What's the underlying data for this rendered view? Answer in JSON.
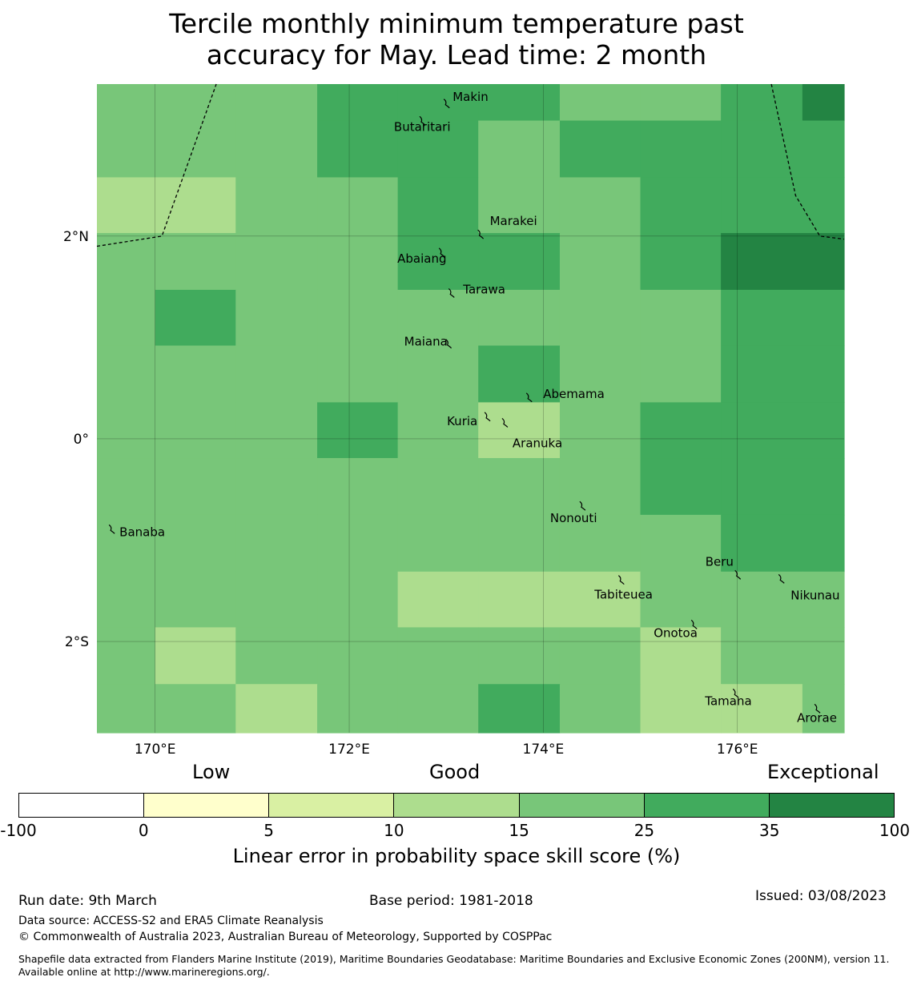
{
  "title_line1": "Tercile monthly minimum temperature past",
  "title_line2": "accuracy for May. Lead time: 2 month",
  "map": {
    "lon_range": [
      169.4,
      177.1
    ],
    "lat_range": [
      -2.9,
      3.5
    ],
    "lat_labels": [
      {
        "value": 2,
        "label": "2°N"
      },
      {
        "value": 0,
        "label": "0°"
      },
      {
        "value": -2,
        "label": "2°S"
      }
    ],
    "lon_labels": [
      {
        "value": 170,
        "label": "170°E"
      },
      {
        "value": 172,
        "label": "172°E"
      },
      {
        "value": 174,
        "label": "174°E"
      },
      {
        "value": 176,
        "label": "176°E"
      }
    ],
    "grid_lons": [
      169.4,
      170.0,
      170.83,
      171.67,
      172.5,
      173.33,
      174.17,
      175.0,
      175.83,
      176.67,
      177.1
    ],
    "grid_lats": [
      3.5,
      3.14,
      2.58,
      2.03,
      1.47,
      0.92,
      0.36,
      -0.19,
      -0.75,
      -1.31,
      -1.86,
      -2.42,
      -2.9
    ],
    "skill_class_grid": [
      [
        4,
        4,
        4,
        5,
        5,
        5,
        4,
        4,
        5,
        6
      ],
      [
        4,
        4,
        4,
        5,
        5,
        4,
        5,
        5,
        5,
        5
      ],
      [
        3,
        3,
        4,
        4,
        5,
        4,
        4,
        5,
        5,
        5
      ],
      [
        4,
        4,
        4,
        4,
        5,
        5,
        4,
        5,
        6,
        6
      ],
      [
        4,
        5,
        4,
        4,
        4,
        4,
        4,
        4,
        5,
        5
      ],
      [
        4,
        4,
        4,
        4,
        4,
        5,
        4,
        4,
        5,
        5
      ],
      [
        4,
        4,
        4,
        5,
        4,
        3,
        4,
        5,
        5,
        5
      ],
      [
        4,
        4,
        4,
        4,
        4,
        4,
        4,
        5,
        5,
        5
      ],
      [
        4,
        4,
        4,
        4,
        4,
        4,
        4,
        4,
        5,
        5
      ],
      [
        4,
        4,
        4,
        4,
        3,
        3,
        3,
        4,
        4,
        4
      ],
      [
        4,
        3,
        4,
        4,
        4,
        4,
        4,
        3,
        4,
        4
      ],
      [
        4,
        4,
        3,
        4,
        4,
        5,
        4,
        3,
        3,
        4
      ]
    ],
    "islands": [
      {
        "name": "Makin",
        "lon": 173.0,
        "lat": 3.32
      },
      {
        "name": "Butaritari",
        "lon": 172.75,
        "lat": 3.15
      },
      {
        "name": "Marakei",
        "lon": 173.35,
        "lat": 2.03
      },
      {
        "name": "Abaiang",
        "lon": 172.95,
        "lat": 1.85
      },
      {
        "name": "Tarawa",
        "lon": 173.05,
        "lat": 1.45
      },
      {
        "name": "Maiana",
        "lon": 173.02,
        "lat": 0.95
      },
      {
        "name": "Abemama",
        "lon": 173.85,
        "lat": 0.42
      },
      {
        "name": "Kuria",
        "lon": 173.42,
        "lat": 0.23
      },
      {
        "name": "Aranuka",
        "lon": 173.6,
        "lat": 0.17
      },
      {
        "name": "Nonouti",
        "lon": 174.4,
        "lat": -0.65
      },
      {
        "name": "Banaba",
        "lon": 169.55,
        "lat": -0.88
      },
      {
        "name": "Tabiteuea",
        "lon": 174.8,
        "lat": -1.38
      },
      {
        "name": "Beru",
        "lon": 176.0,
        "lat": -1.33
      },
      {
        "name": "Nikunau",
        "lon": 176.45,
        "lat": -1.37
      },
      {
        "name": "Onotoa",
        "lon": 175.55,
        "lat": -1.82
      },
      {
        "name": "Tamana",
        "lon": 175.98,
        "lat": -2.5
      },
      {
        "name": "Arorae",
        "lon": 176.82,
        "lat": -2.65
      }
    ],
    "eez_boundary_west": [
      [
        169.4,
        1.9
      ],
      [
        170.07,
        2.0
      ],
      [
        170.63,
        3.5
      ]
    ],
    "eez_boundary_east": [
      [
        176.35,
        3.5
      ],
      [
        176.6,
        2.4
      ],
      [
        176.85,
        2.0
      ],
      [
        177.1,
        1.97
      ]
    ]
  },
  "colorbar": {
    "category_labels": [
      "Low",
      "Good",
      "Exceptional"
    ],
    "ticks": [
      "-100",
      "0",
      "5",
      "10",
      "15",
      "25",
      "35",
      "100"
    ],
    "colors": [
      "#ffffff",
      "#ffffcc",
      "#d9f0a3",
      "#addd8e",
      "#78c679",
      "#41ab5d",
      "#238443"
    ],
    "title": "Linear error in probability space skill score (%)"
  },
  "footer": {
    "run_date": "Run date: 9th March",
    "base_period": "Base period: 1981-2018",
    "issued": "Issued: 03/08/2023",
    "data_source": "Data source: ACCESS-S2 and ERA5 Climate Reanalysis",
    "copyright": "© Commonwealth of Australia 2023, Australian Bureau of Meteorology, Supported by COSPPac",
    "shapefile": "Shapefile data extracted from Flanders Marine Institute (2019), Maritime Boundaries Geodatabase: Maritime Boundaries and Exclusive Economic Zones (200NM), version 11. Available online at http://www.marineregions.org/."
  }
}
